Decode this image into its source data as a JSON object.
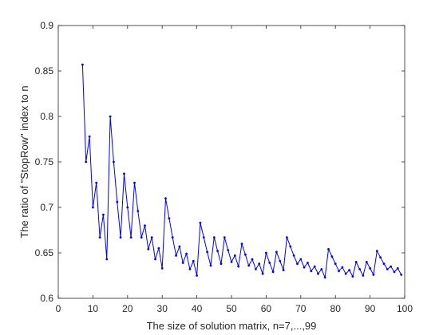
{
  "chart_data": {
    "type": "line",
    "title": "",
    "xlabel": "The size of solution matrix, n=7,...,99",
    "ylabel": "The ratio of \"StopRow\" index to n",
    "xlim": [
      0,
      100
    ],
    "ylim": [
      0.6,
      0.9
    ],
    "xticks": [
      0,
      10,
      20,
      30,
      40,
      50,
      60,
      70,
      80,
      90,
      100
    ],
    "yticks": [
      0.6,
      0.65,
      0.7,
      0.75,
      0.8,
      0.85,
      0.9
    ],
    "grid": false,
    "series_color": "#0000ff",
    "series": [
      {
        "x": [
          7,
          8,
          9,
          10,
          11,
          12,
          13,
          14,
          15,
          16,
          17,
          18,
          19,
          20,
          21,
          22,
          23,
          24,
          25,
          26,
          27,
          28,
          29,
          30,
          31,
          32,
          33,
          34,
          35,
          36,
          37,
          38,
          39,
          40,
          41,
          42,
          43,
          44,
          45,
          46,
          47,
          48,
          49,
          50,
          51,
          52,
          53,
          54,
          55,
          56,
          57,
          58,
          59,
          60,
          61,
          62,
          63,
          64,
          65,
          66,
          67,
          68,
          69,
          70,
          71,
          72,
          73,
          74,
          75,
          76,
          77,
          78,
          79,
          80,
          81,
          82,
          83,
          84,
          85,
          86,
          87,
          88,
          89,
          90,
          91,
          92,
          93,
          94,
          95,
          96,
          97,
          98,
          99
        ],
        "values": [
          0.857,
          0.75,
          0.778,
          0.7,
          0.727,
          0.667,
          0.692,
          0.643,
          0.8,
          0.75,
          0.706,
          0.667,
          0.737,
          0.7,
          0.667,
          0.727,
          0.696,
          0.667,
          0.68,
          0.654,
          0.667,
          0.643,
          0.655,
          0.633,
          0.71,
          0.688,
          0.667,
          0.647,
          0.657,
          0.639,
          0.649,
          0.632,
          0.641,
          0.625,
          0.683,
          0.667,
          0.651,
          0.636,
          0.667,
          0.652,
          0.638,
          0.667,
          0.653,
          0.64,
          0.647,
          0.635,
          0.66,
          0.648,
          0.636,
          0.643,
          0.632,
          0.638,
          0.627,
          0.65,
          0.639,
          0.629,
          0.651,
          0.641,
          0.631,
          0.667,
          0.657,
          0.647,
          0.638,
          0.643,
          0.634,
          0.639,
          0.63,
          0.635,
          0.627,
          0.632,
          0.623,
          0.654,
          0.646,
          0.638,
          0.63,
          0.634,
          0.627,
          0.631,
          0.624,
          0.64,
          0.632,
          0.625,
          0.64,
          0.633,
          0.626,
          0.652,
          0.645,
          0.638,
          0.632,
          0.635,
          0.629,
          0.633,
          0.626
        ]
      }
    ]
  }
}
